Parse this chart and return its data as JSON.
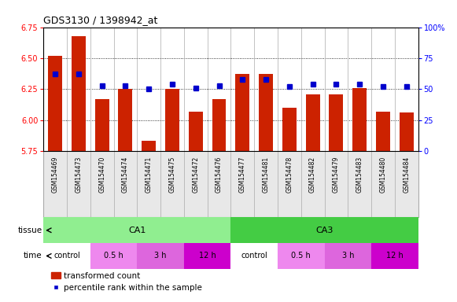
{
  "title": "GDS3130 / 1398942_at",
  "samples": [
    "GSM154469",
    "GSM154473",
    "GSM154470",
    "GSM154474",
    "GSM154471",
    "GSM154475",
    "GSM154472",
    "GSM154476",
    "GSM154477",
    "GSM154481",
    "GSM154478",
    "GSM154482",
    "GSM154479",
    "GSM154483",
    "GSM154480",
    "GSM154484"
  ],
  "red_values": [
    6.52,
    6.68,
    6.17,
    6.25,
    5.83,
    6.25,
    6.07,
    6.17,
    6.37,
    6.37,
    6.1,
    6.21,
    6.21,
    6.26,
    6.07,
    6.06
  ],
  "blue_values": [
    6.37,
    6.37,
    6.28,
    6.28,
    6.25,
    6.29,
    6.26,
    6.28,
    6.33,
    6.33,
    6.27,
    6.29,
    6.29,
    6.29,
    6.27,
    6.27
  ],
  "ylim_left": [
    5.75,
    6.75
  ],
  "ylim_right": [
    0,
    100
  ],
  "yticks_left": [
    5.75,
    6.0,
    6.25,
    6.5,
    6.75
  ],
  "yticks_right": [
    0,
    25,
    50,
    75,
    100
  ],
  "bar_bottom": 5.75,
  "bar_color": "#cc2200",
  "dot_color": "#0000cc",
  "bg_color": "#e8e8e8",
  "tissue_color_ca1": "#90ee90",
  "tissue_color_ca3": "#44cc44",
  "time_colors": [
    "#ffffff",
    "#ee88ee",
    "#dd66dd",
    "#cc00cc"
  ],
  "legend_red": "transformed count",
  "legend_blue": "percentile rank within the sample"
}
